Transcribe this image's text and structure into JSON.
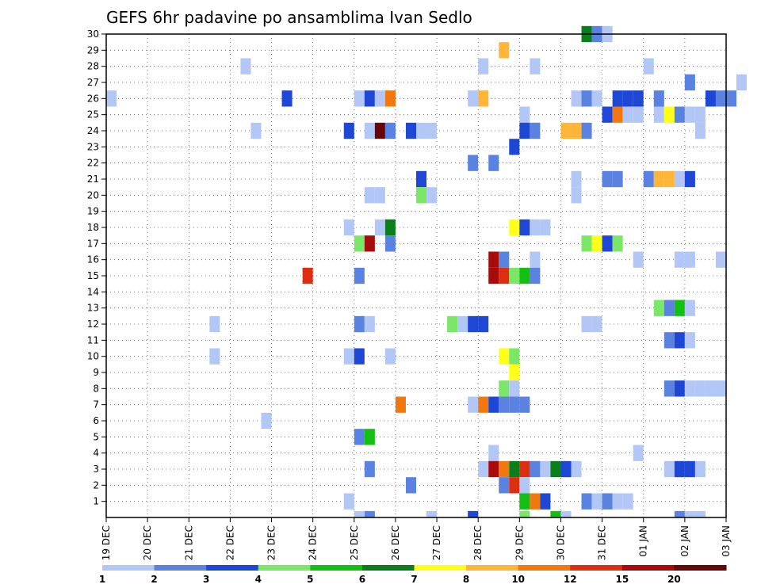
{
  "chart_data": {
    "type": "heatmap",
    "title": "GEFS 6hr padavine po ansamblima Ivan Sedlo",
    "x_tick_labels": [
      "19 DEC",
      "20 DEC",
      "21 DEC",
      "22 DEC",
      "23 DEC",
      "24 DEC",
      "25 DEC",
      "26 DEC",
      "27 DEC",
      "28 DEC",
      "29 DEC",
      "30 DEC",
      "31 DEC",
      "01 JAN",
      "02 JAN",
      "03 JAN"
    ],
    "y_tick_labels": [
      "1",
      "2",
      "3",
      "4",
      "5",
      "6",
      "7",
      "8",
      "9",
      "10",
      "11",
      "12",
      "13",
      "14",
      "15",
      "16",
      "17",
      "18",
      "19",
      "20",
      "21",
      "22",
      "23",
      "24",
      "25",
      "26",
      "27",
      "28",
      "29",
      "30"
    ],
    "ylim": [
      0,
      30
    ],
    "steps_per_day": 4,
    "grid": true,
    "colorbar": {
      "labels": [
        "1",
        "2",
        "3",
        "4",
        "5",
        "6",
        "7",
        "8",
        "10",
        "12",
        "15",
        "20"
      ],
      "colors": [
        "#b3c7f7",
        "#5a82e0",
        "#1f47d6",
        "#7ae866",
        "#11c011",
        "#0a7e1a",
        "#ffff1a",
        "#ffb638",
        "#f0780f",
        "#dd2e0f",
        "#a80b0b",
        "#660707"
      ]
    },
    "palette": [
      "#b3c7f7",
      "#5a82e0",
      "#1f47d6",
      "#7ae866",
      "#11c011",
      "#0a7e1a",
      "#ffff1a",
      "#ffb638",
      "#f0780f",
      "#dd2e0f",
      "#a80b0b",
      "#660707"
    ],
    "note_cells": "each cell: [member, time_step (6h steps from 19 DEC 00Z), color_index]",
    "cells": [
      [
        30,
        46,
        5
      ],
      [
        30,
        47,
        1
      ],
      [
        30,
        48,
        0
      ],
      [
        29,
        38,
        7
      ],
      [
        28,
        13,
        0
      ],
      [
        28,
        36,
        0
      ],
      [
        28,
        41,
        0
      ],
      [
        28,
        52,
        0
      ],
      [
        27,
        56,
        1
      ],
      [
        27,
        61,
        0
      ],
      [
        26,
        17,
        2
      ],
      [
        26,
        24,
        0
      ],
      [
        26,
        25,
        2
      ],
      [
        26,
        26,
        0
      ],
      [
        26,
        27,
        8
      ],
      [
        26,
        35,
        0
      ],
      [
        26,
        36,
        7
      ],
      [
        26,
        45,
        0
      ],
      [
        26,
        46,
        1
      ],
      [
        26,
        47,
        0
      ],
      [
        26,
        49,
        2
      ],
      [
        26,
        50,
        2
      ],
      [
        26,
        51,
        2
      ],
      [
        26,
        53,
        1
      ],
      [
        26,
        58,
        2
      ],
      [
        26,
        59,
        1
      ],
      [
        26,
        60,
        1
      ],
      [
        25,
        40,
        0
      ],
      [
        26,
        0,
        0
      ],
      [
        25,
        48,
        2
      ],
      [
        25,
        49,
        8
      ],
      [
        25,
        50,
        0
      ],
      [
        25,
        51,
        0
      ],
      [
        25,
        53,
        0
      ],
      [
        25,
        54,
        6
      ],
      [
        25,
        55,
        1
      ],
      [
        25,
        56,
        0
      ],
      [
        25,
        57,
        0
      ],
      [
        24,
        14,
        0
      ],
      [
        24,
        23,
        2
      ],
      [
        24,
        25,
        0
      ],
      [
        24,
        26,
        11
      ],
      [
        24,
        27,
        1
      ],
      [
        24,
        29,
        2
      ],
      [
        24,
        30,
        0
      ],
      [
        24,
        31,
        0
      ],
      [
        24,
        40,
        2
      ],
      [
        24,
        41,
        1
      ],
      [
        24,
        44,
        7
      ],
      [
        24,
        45,
        7
      ],
      [
        24,
        46,
        1
      ],
      [
        24,
        57,
        0
      ],
      [
        23,
        39,
        2
      ],
      [
        22,
        35,
        1
      ],
      [
        22,
        37,
        1
      ],
      [
        21,
        30,
        2
      ],
      [
        21,
        45,
        0
      ],
      [
        21,
        48,
        1
      ],
      [
        21,
        49,
        1
      ],
      [
        21,
        52,
        1
      ],
      [
        21,
        53,
        7
      ],
      [
        21,
        54,
        7
      ],
      [
        21,
        55,
        0
      ],
      [
        21,
        56,
        2
      ],
      [
        20,
        25,
        0
      ],
      [
        20,
        26,
        0
      ],
      [
        20,
        30,
        3
      ],
      [
        20,
        31,
        0
      ],
      [
        20,
        45,
        0
      ],
      [
        18,
        23,
        0
      ],
      [
        18,
        26,
        0
      ],
      [
        18,
        27,
        5
      ],
      [
        18,
        39,
        6
      ],
      [
        18,
        40,
        2
      ],
      [
        18,
        41,
        0
      ],
      [
        18,
        42,
        0
      ],
      [
        17,
        24,
        3
      ],
      [
        17,
        25,
        10
      ],
      [
        17,
        27,
        1
      ],
      [
        17,
        46,
        3
      ],
      [
        17,
        47,
        6
      ],
      [
        17,
        48,
        2
      ],
      [
        17,
        49,
        3
      ],
      [
        16,
        37,
        10
      ],
      [
        16,
        38,
        1
      ],
      [
        16,
        41,
        0
      ],
      [
        16,
        51,
        0
      ],
      [
        16,
        55,
        0
      ],
      [
        16,
        56,
        0
      ],
      [
        16,
        59,
        0
      ],
      [
        15,
        37,
        10
      ],
      [
        15,
        38,
        9
      ],
      [
        15,
        39,
        3
      ],
      [
        15,
        40,
        4
      ],
      [
        15,
        41,
        1
      ],
      [
        15,
        19,
        9
      ],
      [
        15,
        24,
        1
      ],
      [
        13,
        53,
        3
      ],
      [
        13,
        54,
        1
      ],
      [
        13,
        55,
        4
      ],
      [
        13,
        56,
        0
      ],
      [
        12,
        10,
        0
      ],
      [
        12,
        24,
        1
      ],
      [
        12,
        25,
        0
      ],
      [
        12,
        33,
        3
      ],
      [
        12,
        34,
        0
      ],
      [
        12,
        35,
        2
      ],
      [
        12,
        36,
        2
      ],
      [
        12,
        46,
        0
      ],
      [
        12,
        47,
        0
      ],
      [
        11,
        54,
        1
      ],
      [
        11,
        55,
        2
      ],
      [
        11,
        56,
        0
      ],
      [
        10,
        10,
        0
      ],
      [
        10,
        23,
        0
      ],
      [
        10,
        24,
        2
      ],
      [
        10,
        27,
        0
      ],
      [
        10,
        38,
        6
      ],
      [
        10,
        39,
        3
      ],
      [
        9,
        39,
        6
      ],
      [
        8,
        38,
        3
      ],
      [
        8,
        39,
        0
      ],
      [
        8,
        54,
        1
      ],
      [
        8,
        55,
        2
      ],
      [
        8,
        56,
        0
      ],
      [
        8,
        57,
        0
      ],
      [
        8,
        58,
        0
      ],
      [
        8,
        59,
        0
      ],
      [
        7,
        28,
        8
      ],
      [
        7,
        35,
        0
      ],
      [
        7,
        36,
        8
      ],
      [
        7,
        37,
        2
      ],
      [
        7,
        38,
        1
      ],
      [
        7,
        39,
        1
      ],
      [
        7,
        40,
        1
      ],
      [
        6,
        15,
        0
      ],
      [
        5,
        24,
        1
      ],
      [
        5,
        25,
        4
      ],
      [
        4,
        37,
        0
      ],
      [
        4,
        51,
        0
      ],
      [
        3,
        25,
        1
      ],
      [
        3,
        36,
        0
      ],
      [
        3,
        37,
        10
      ],
      [
        3,
        38,
        8
      ],
      [
        3,
        39,
        5
      ],
      [
        3,
        40,
        9
      ],
      [
        3,
        41,
        1
      ],
      [
        3,
        42,
        0
      ],
      [
        3,
        43,
        5
      ],
      [
        3,
        44,
        2
      ],
      [
        3,
        45,
        0
      ],
      [
        3,
        54,
        0
      ],
      [
        3,
        55,
        2
      ],
      [
        3,
        56,
        2
      ],
      [
        3,
        57,
        0
      ],
      [
        2,
        29,
        1
      ],
      [
        2,
        38,
        1
      ],
      [
        2,
        39,
        9
      ],
      [
        2,
        40,
        0
      ],
      [
        1,
        23,
        0
      ],
      [
        1,
        40,
        4
      ],
      [
        1,
        41,
        8
      ],
      [
        1,
        42,
        2
      ],
      [
        1,
        46,
        1
      ],
      [
        1,
        47,
        0
      ],
      [
        1,
        48,
        1
      ],
      [
        1,
        49,
        0
      ],
      [
        1,
        50,
        0
      ],
      [
        0,
        25,
        1
      ],
      [
        0,
        24,
        0
      ],
      [
        0,
        35,
        2
      ],
      [
        0,
        31,
        0
      ],
      [
        0,
        40,
        3
      ],
      [
        0,
        43,
        4
      ],
      [
        0,
        44,
        0
      ],
      [
        0,
        55,
        1
      ],
      [
        0,
        56,
        0
      ],
      [
        0,
        57,
        0
      ]
    ]
  }
}
